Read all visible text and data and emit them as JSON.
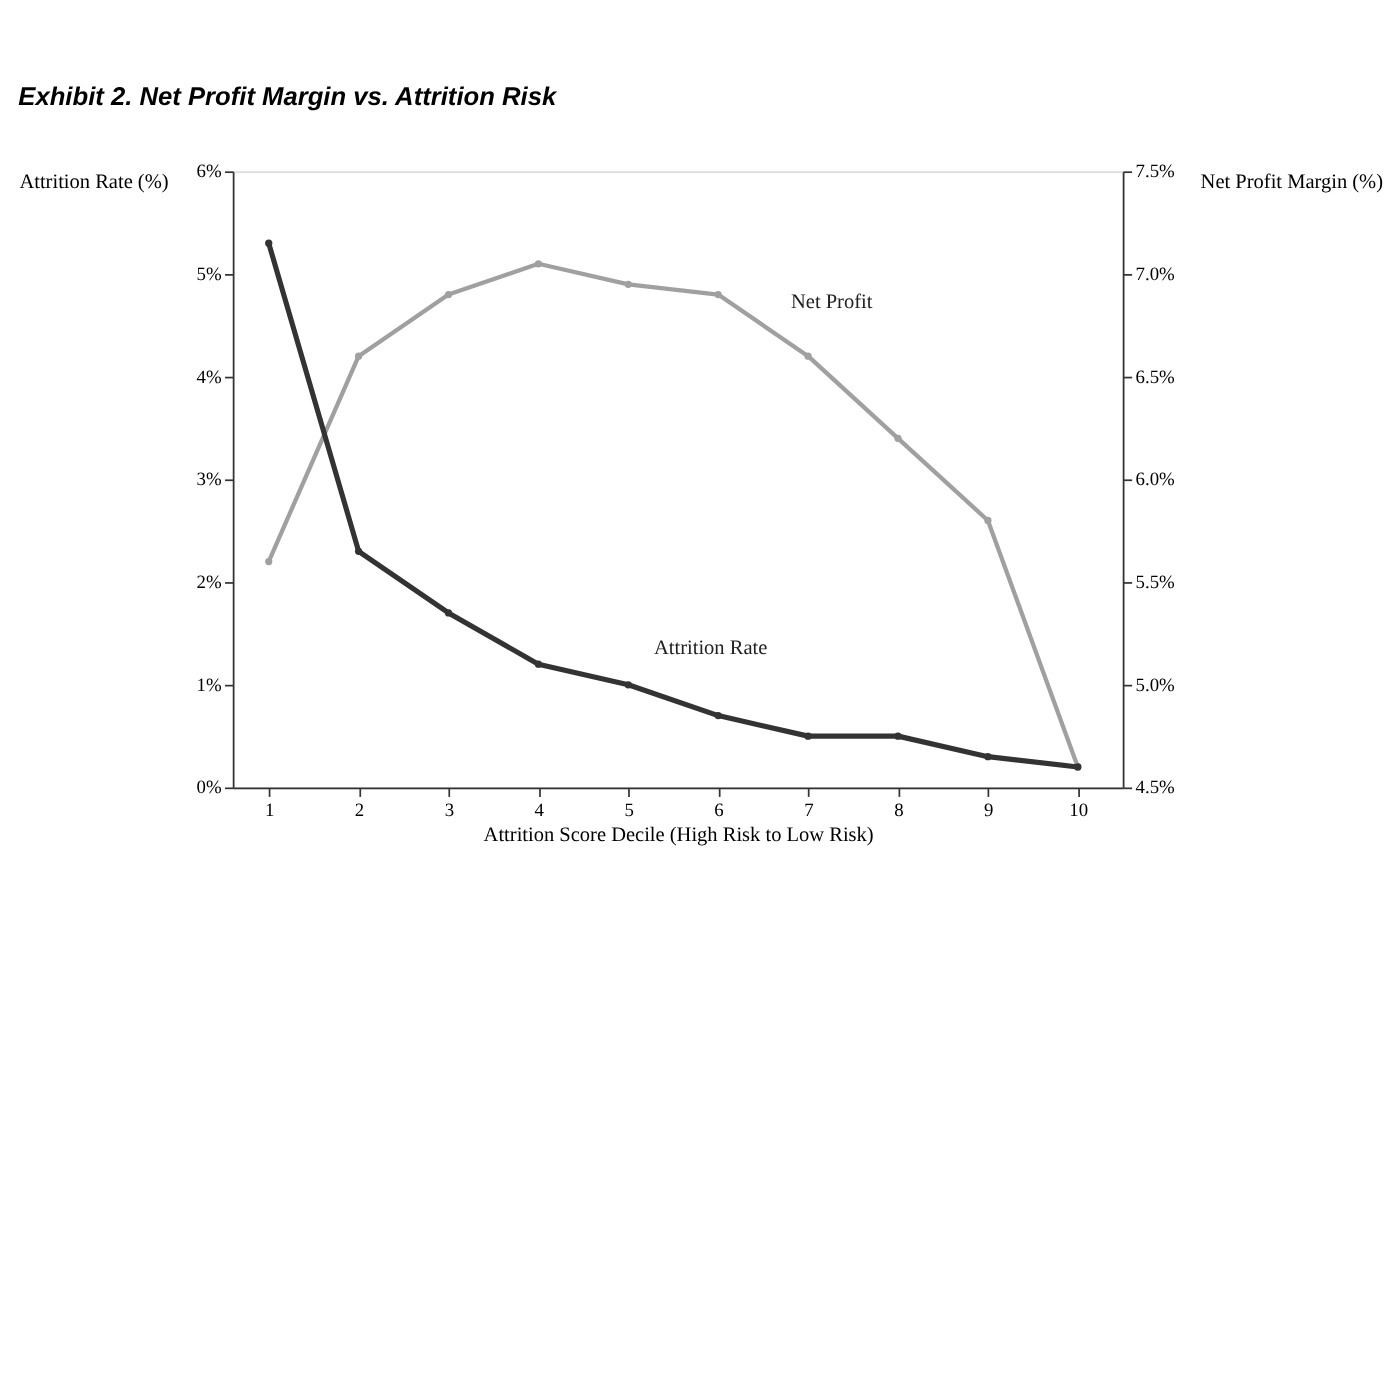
{
  "chart_data": {
    "type": "line",
    "title": "Exhibit 2. Net Profit Margin vs. Attrition Risk",
    "xlabel": "Attrition Score Decile (High Risk to Low Risk)",
    "ylabel": "Attrition Rate (%)",
    "y2label": "Net Profit Margin (%)",
    "x": [
      1,
      2,
      3,
      4,
      5,
      6,
      7,
      8,
      9,
      10
    ],
    "series": [
      {
        "name": "Attrition Rate",
        "color": "#333333",
        "values": [
          5.3,
          2.3,
          1.7,
          1.2,
          1.0,
          0.7,
          0.5,
          0.5,
          0.3,
          0.2
        ]
      },
      {
        "name": "Net Profit",
        "color": "#a0a0a0",
        "axis": "y2",
        "values": [
          5.6,
          6.6,
          6.9,
          7.05,
          6.95,
          6.9,
          6.6,
          6.2,
          5.8,
          4.6
        ]
      }
    ],
    "xlim": [
      0.6,
      10.5
    ],
    "xticks": [
      1,
      2,
      3,
      4,
      5,
      6,
      7,
      8,
      9,
      10
    ],
    "ylim": [
      0,
      6
    ],
    "yticks": [
      {
        "value": 0,
        "label": "0%"
      },
      {
        "value": 1,
        "label": "1%"
      },
      {
        "value": 2,
        "label": "2%"
      },
      {
        "value": 3,
        "label": "3%"
      },
      {
        "value": 4,
        "label": "4%"
      },
      {
        "value": 5,
        "label": "5%"
      },
      {
        "value": 6,
        "label": "6%"
      }
    ],
    "y2lim": [
      4.5,
      7.5
    ],
    "y2ticks": [
      {
        "value": 4.5,
        "label": "4.5%"
      },
      {
        "value": 5.0,
        "label": "5.0%"
      },
      {
        "value": 5.5,
        "label": "5.5%"
      },
      {
        "value": 6.0,
        "label": "6.0%"
      },
      {
        "value": 6.5,
        "label": "6.5%"
      },
      {
        "value": 7.0,
        "label": "7.0%"
      },
      {
        "value": 7.5,
        "label": "7.5%"
      }
    ],
    "grid": false,
    "marker": "circle",
    "line_style": "solid"
  }
}
